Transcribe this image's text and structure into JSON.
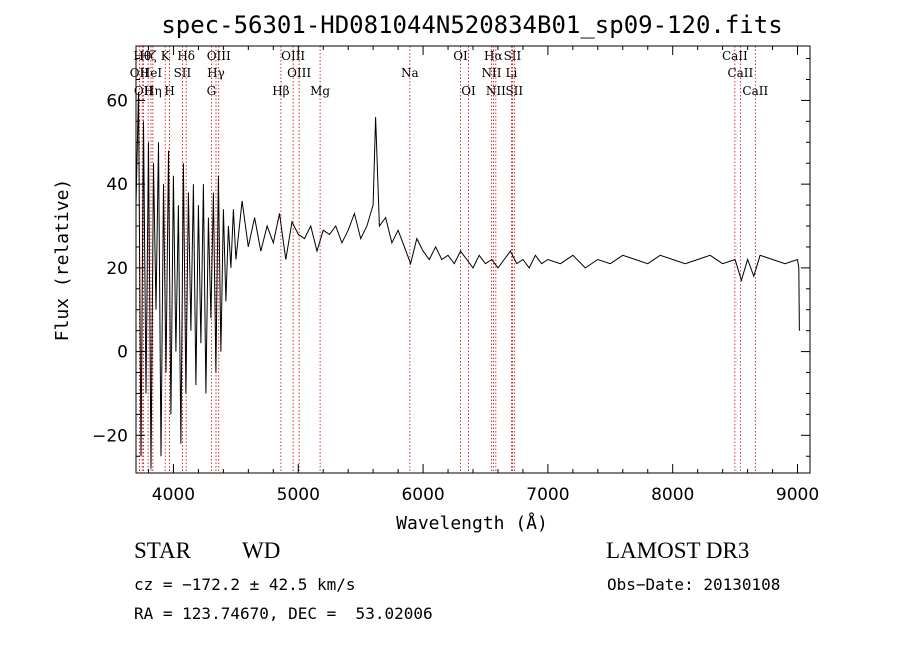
{
  "chart_data": {
    "type": "line",
    "title": "spec-56301-HD081044N520834B01_sp09-120.fits",
    "xlabel": "Wavelength (Å)",
    "ylabel": "Flux (relative)",
    "xlim": [
      3700,
      9100
    ],
    "ylim": [
      -29,
      73
    ],
    "grid": false,
    "x_ticks": [
      4000,
      5000,
      6000,
      7000,
      8000,
      9000
    ],
    "y_ticks": [
      -20,
      0,
      20,
      40,
      60
    ],
    "x_tick_labels": [
      "4000",
      "5000",
      "6000",
      "7000",
      "8000",
      "9000"
    ],
    "y_tick_labels": [
      "−20",
      "0",
      "20",
      "40",
      "60"
    ],
    "series": [
      {
        "name": "flux",
        "x": [
          3700,
          3720,
          3740,
          3760,
          3780,
          3800,
          3820,
          3840,
          3860,
          3880,
          3900,
          3920,
          3940,
          3960,
          3980,
          4000,
          4020,
          4040,
          4060,
          4080,
          4100,
          4120,
          4140,
          4160,
          4180,
          4200,
          4220,
          4240,
          4260,
          4280,
          4300,
          4320,
          4340,
          4360,
          4380,
          4400,
          4420,
          4440,
          4460,
          4480,
          4500,
          4550,
          4600,
          4650,
          4700,
          4750,
          4800,
          4850,
          4900,
          4950,
          5000,
          5050,
          5100,
          5150,
          5200,
          5250,
          5300,
          5350,
          5400,
          5450,
          5500,
          5550,
          5600,
          5620,
          5650,
          5700,
          5750,
          5800,
          5850,
          5900,
          5950,
          6000,
          6050,
          6100,
          6150,
          6200,
          6250,
          6300,
          6350,
          6400,
          6450,
          6500,
          6550,
          6600,
          6650,
          6700,
          6750,
          6800,
          6850,
          6900,
          6950,
          7000,
          7100,
          7200,
          7300,
          7400,
          7500,
          7600,
          7700,
          7800,
          7900,
          8000,
          8100,
          8200,
          8300,
          8400,
          8500,
          8550,
          8600,
          8650,
          8700,
          8800,
          8900,
          9000,
          9010,
          9015
        ],
        "y": [
          35,
          62,
          -25,
          55,
          -10,
          50,
          -28,
          45,
          10,
          50,
          -25,
          40,
          -5,
          48,
          -15,
          42,
          0,
          35,
          -22,
          45,
          -10,
          38,
          5,
          40,
          -8,
          35,
          2,
          40,
          -10,
          32,
          8,
          38,
          -5,
          42,
          0,
          34,
          12,
          30,
          20,
          34,
          22,
          36,
          25,
          32,
          24,
          30,
          26,
          33,
          22,
          31,
          28,
          27,
          30,
          24,
          29,
          28,
          30,
          26,
          29,
          33,
          27,
          30,
          35,
          56,
          30,
          32,
          26,
          29,
          25,
          21,
          27,
          24,
          22,
          25,
          22,
          23,
          21,
          24,
          22,
          20,
          23,
          21,
          22,
          20,
          22,
          24,
          21,
          22,
          20,
          23,
          21,
          22,
          21,
          23,
          20,
          22,
          21,
          23,
          22,
          21,
          23,
          22,
          21,
          22,
          23,
          21,
          22,
          17,
          22,
          18,
          23,
          22,
          21,
          22,
          20,
          5
        ]
      }
    ],
    "line_markers": [
      {
        "label": "OII",
        "x": 3727,
        "row": 2
      },
      {
        "label": "Hθ",
        "x": 3750,
        "row": 1
      },
      {
        "label": "OII",
        "x": 3760,
        "row": 3
      },
      {
        "label": "Hζ",
        "x": 3797,
        "row": 1
      },
      {
        "label": "HeI",
        "x": 3820,
        "row": 2
      },
      {
        "label": "Hη",
        "x": 3835,
        "row": 3
      },
      {
        "label": "K",
        "x": 3934,
        "row": 1
      },
      {
        "label": "SII",
        "x": 4072,
        "row": 2
      },
      {
        "label": "H",
        "x": 3969,
        "row": 3
      },
      {
        "label": "Hδ",
        "x": 4102,
        "row": 1
      },
      {
        "label": "OIII",
        "x": 4363,
        "row": 1
      },
      {
        "label": "Hγ",
        "x": 4341,
        "row": 2
      },
      {
        "label": "G",
        "x": 4304,
        "row": 3
      },
      {
        "label": "OIII",
        "x": 4959,
        "row": 1
      },
      {
        "label": "OIII",
        "x": 5007,
        "row": 2
      },
      {
        "label": "Hβ",
        "x": 4861,
        "row": 3
      },
      {
        "label": "Mg",
        "x": 5175,
        "row": 3
      },
      {
        "label": "Na",
        "x": 5894,
        "row": 2
      },
      {
        "label": "OI",
        "x": 6300,
        "row": 1
      },
      {
        "label": "OI",
        "x": 6364,
        "row": 3
      },
      {
        "label": "Hα",
        "x": 6563,
        "row": 1
      },
      {
        "label": "NII",
        "x": 6548,
        "row": 2
      },
      {
        "label": "NII",
        "x": 6583,
        "row": 3
      },
      {
        "label": "SII",
        "x": 6716,
        "row": 1
      },
      {
        "label": "Li",
        "x": 6708,
        "row": 2
      },
      {
        "label": "SII",
        "x": 6731,
        "row": 3
      },
      {
        "label": "CaII",
        "x": 8498,
        "row": 1
      },
      {
        "label": "CaII",
        "x": 8542,
        "row": 2
      },
      {
        "label": "CaII",
        "x": 8662,
        "row": 3
      }
    ]
  },
  "info": {
    "class": "STAR",
    "subclass": "WD",
    "survey": "LAMOST DR3",
    "cz": "cz = −172.2 ± 42.5 km/s",
    "obs_date": "Obs−Date: 20130108",
    "radec": "RA = 123.74670, DEC =  53.02006"
  },
  "colors": {
    "line": "#000000",
    "marker": "#cc0000",
    "background": "#ffffff"
  }
}
